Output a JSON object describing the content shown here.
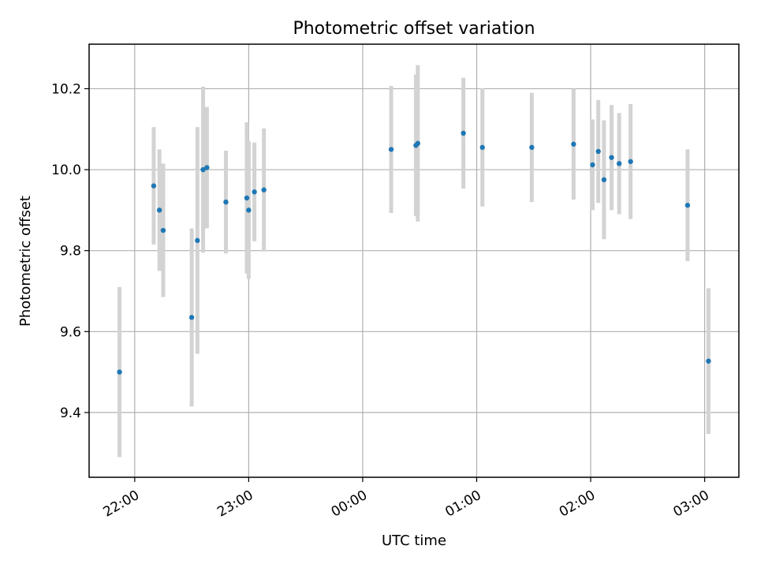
{
  "chart_data": {
    "type": "scatter",
    "title": "Photometric offset variation",
    "xlabel": "UTC time",
    "ylabel": "Photometric offset",
    "x_ticks": [
      "22:00",
      "23:00",
      "00:00",
      "01:00",
      "02:00",
      "03:00"
    ],
    "x_tick_values": [
      22.0,
      23.0,
      24.0,
      25.0,
      26.0,
      27.0
    ],
    "xlim": [
      21.6,
      27.3
    ],
    "ylim": [
      9.24,
      10.31
    ],
    "y_ticks": [
      9.4,
      9.6,
      9.8,
      10.0,
      10.2
    ],
    "y_tick_labels": [
      "9.4",
      "9.6",
      "9.8",
      "10.0",
      "10.2"
    ],
    "grid": true,
    "colors": {
      "marker": "#1f77b4",
      "errorbar": "#d3d3d3"
    },
    "points": [
      {
        "t": "21:52",
        "y": 9.5,
        "err": 0.21
      },
      {
        "t": "22:10",
        "y": 9.96,
        "err": 0.145
      },
      {
        "t": "22:13",
        "y": 9.9,
        "err": 0.15
      },
      {
        "t": "22:15",
        "y": 9.85,
        "err": 0.165
      },
      {
        "t": "22:30",
        "y": 9.635,
        "err": 0.22
      },
      {
        "t": "22:33",
        "y": 9.825,
        "err": 0.28
      },
      {
        "t": "22:36",
        "y": 10.0,
        "err": 0.205
      },
      {
        "t": "22:38",
        "y": 10.005,
        "err": 0.15
      },
      {
        "t": "22:48",
        "y": 9.92,
        "err": 0.127
      },
      {
        "t": "22:59",
        "y": 9.93,
        "err": 0.187
      },
      {
        "t": "23:00",
        "y": 9.9,
        "err": 0.17
      },
      {
        "t": "23:03",
        "y": 9.945,
        "err": 0.122
      },
      {
        "t": "23:08",
        "y": 9.95,
        "err": 0.152
      },
      {
        "t": "00:15",
        "y": 10.05,
        "err": 0.157
      },
      {
        "t": "00:28",
        "y": 10.06,
        "err": 0.175
      },
      {
        "t": "00:29",
        "y": 10.065,
        "err": 0.193
      },
      {
        "t": "00:53",
        "y": 10.09,
        "err": 0.137
      },
      {
        "t": "01:03",
        "y": 10.055,
        "err": 0.146
      },
      {
        "t": "01:29",
        "y": 10.055,
        "err": 0.135
      },
      {
        "t": "01:51",
        "y": 10.063,
        "err": 0.137
      },
      {
        "t": "02:01",
        "y": 10.012,
        "err": 0.112
      },
      {
        "t": "02:04",
        "y": 10.045,
        "err": 0.127
      },
      {
        "t": "02:07",
        "y": 9.975,
        "err": 0.147
      },
      {
        "t": "02:11",
        "y": 10.03,
        "err": 0.13
      },
      {
        "t": "02:15",
        "y": 10.015,
        "err": 0.125
      },
      {
        "t": "02:21",
        "y": 10.02,
        "err": 0.142
      },
      {
        "t": "02:51",
        "y": 9.912,
        "err": 0.138
      },
      {
        "t": "03:02",
        "y": 9.527,
        "err": 0.18
      }
    ]
  }
}
